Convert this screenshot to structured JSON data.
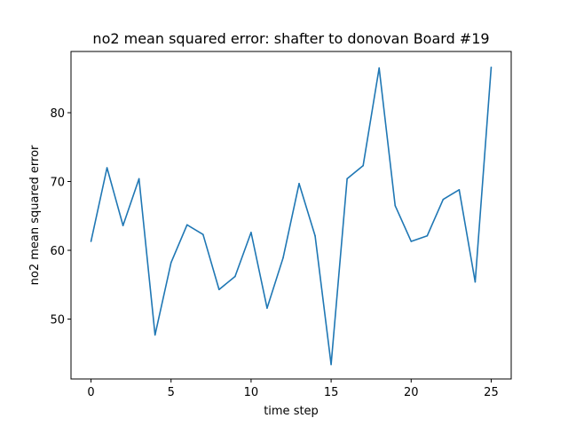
{
  "chart_data": {
    "type": "line",
    "title": "no2 mean squared error: shafter to donovan Board #19",
    "xlabel": "time step",
    "ylabel": "no2 mean squared error",
    "xlim": [
      -1.25,
      26.25
    ],
    "ylim": [
      41.3,
      88.9
    ],
    "xticks": [
      0,
      5,
      10,
      15,
      20,
      25
    ],
    "yticks": [
      50,
      60,
      70,
      80
    ],
    "grid": false,
    "line_color": "#1f77b4",
    "series": [
      {
        "x": [
          0,
          1,
          2,
          3,
          4,
          5,
          6,
          7,
          8,
          9,
          10,
          11,
          12,
          13,
          14,
          15,
          16,
          17,
          18,
          19,
          20,
          21,
          22,
          23,
          24,
          25
        ],
        "values": [
          61.3,
          72.0,
          63.6,
          70.4,
          47.7,
          58.2,
          63.7,
          62.3,
          54.3,
          56.2,
          62.6,
          51.6,
          58.9,
          69.7,
          62.1,
          43.4,
          70.4,
          72.3,
          86.5,
          66.5,
          61.3,
          62.1,
          67.4,
          68.8,
          55.4,
          86.6
        ]
      }
    ]
  }
}
